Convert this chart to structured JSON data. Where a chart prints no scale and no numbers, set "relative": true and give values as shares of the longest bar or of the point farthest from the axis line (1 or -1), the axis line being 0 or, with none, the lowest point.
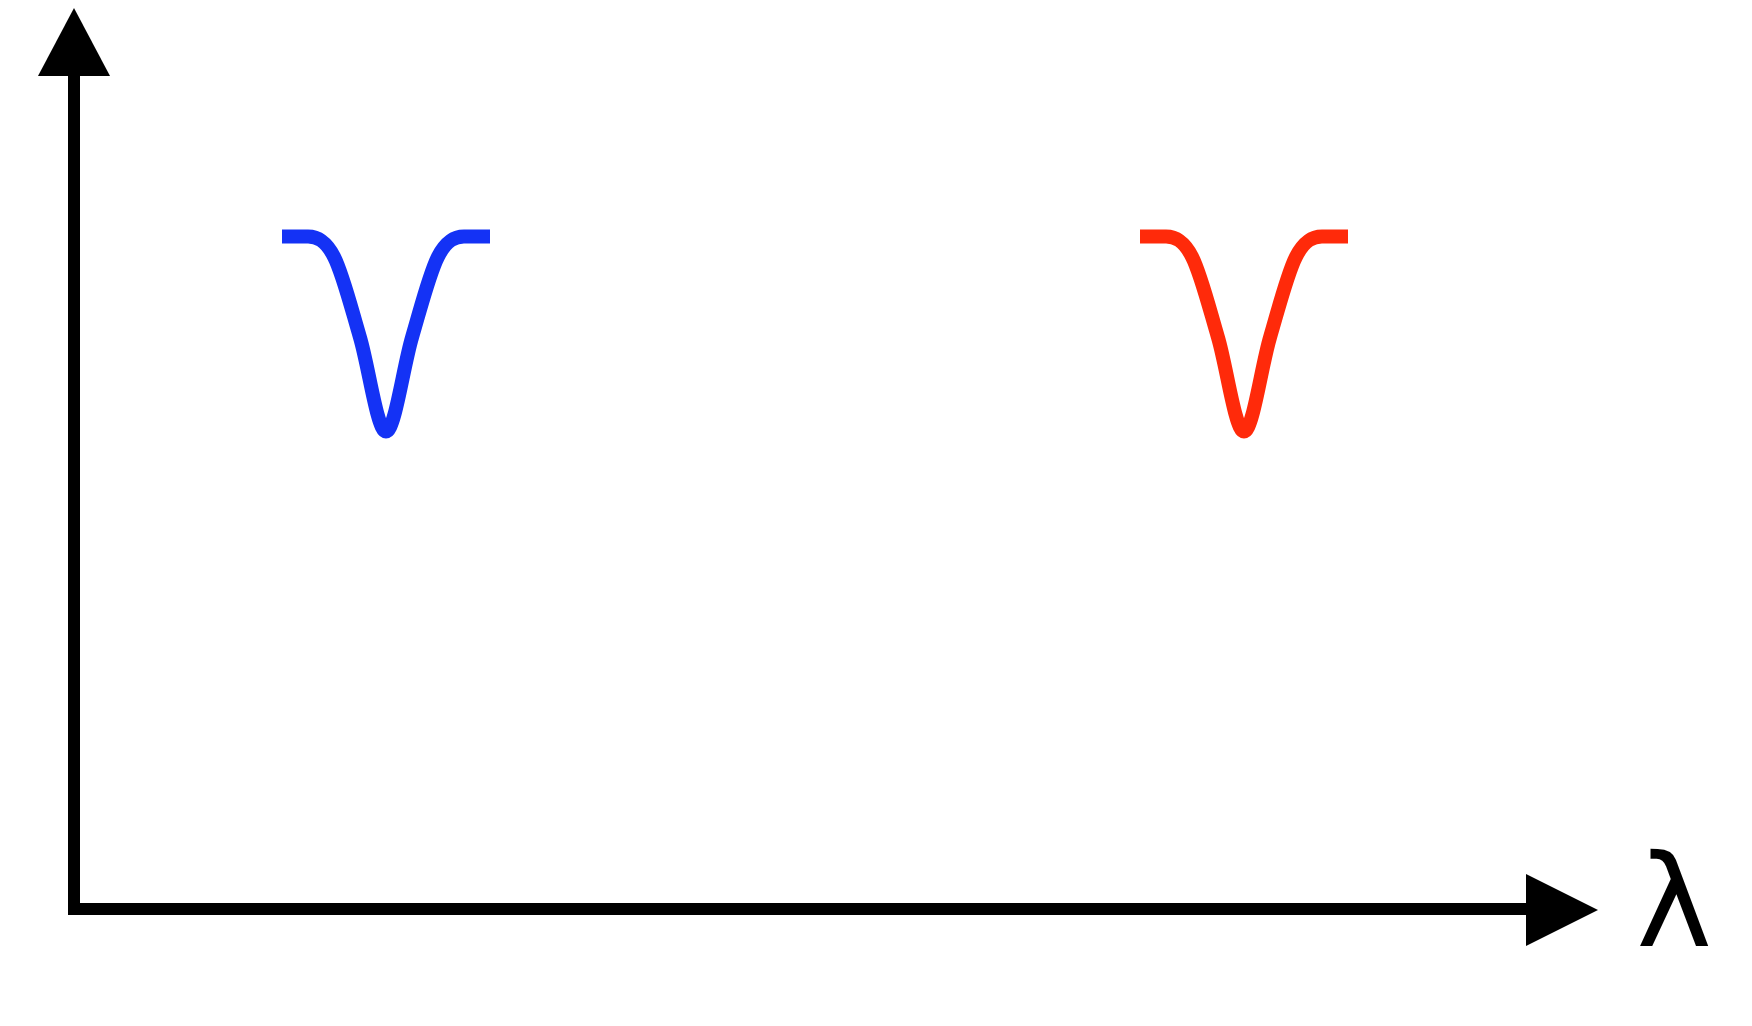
{
  "chart_data": {
    "type": "line",
    "relative": true,
    "xlabel": "λ",
    "legend": false,
    "grid": false,
    "marker": "none",
    "line_style": "solid",
    "categories": [
      null,
      null,
      null,
      null,
      null,
      null,
      null,
      null,
      null,
      null,
      null,
      null,
      null,
      null,
      null,
      null,
      null,
      null,
      null,
      null,
      null,
      null,
      null,
      null,
      null,
      null,
      null,
      null,
      null,
      null,
      null,
      null,
      null,
      null,
      null,
      null,
      null,
      null,
      null,
      null,
      null,
      null,
      null,
      null,
      null,
      null,
      null,
      null,
      null,
      null,
      null,
      null,
      null,
      null,
      null,
      null,
      null
    ],
    "series": [
      {
        "color": "#1432f5",
        "values": [
          null,
          null,
          null,
          null,
          null,
          null,
          null,
          null,
          1,
          1,
          0.97,
          0.85,
          0.71,
          0.85,
          0.97,
          1,
          1,
          null,
          null,
          null,
          null,
          null,
          null,
          null,
          null,
          null,
          null,
          null,
          null,
          null,
          null,
          null,
          null,
          null,
          null,
          null,
          null,
          null,
          null,
          null,
          null,
          null,
          null,
          null,
          null,
          null,
          null,
          null,
          null,
          null,
          null,
          null,
          null,
          null,
          null,
          null,
          null
        ]
      },
      {
        "color": "#ff2a0a",
        "values": [
          null,
          null,
          null,
          null,
          null,
          null,
          null,
          null,
          null,
          null,
          null,
          null,
          null,
          null,
          null,
          null,
          null,
          null,
          null,
          null,
          null,
          null,
          null,
          null,
          null,
          null,
          null,
          null,
          null,
          null,
          null,
          null,
          null,
          null,
          null,
          null,
          null,
          null,
          null,
          null,
          null,
          1,
          1,
          0.97,
          0.85,
          0.71,
          0.85,
          0.97,
          1,
          1,
          null,
          null,
          null,
          null,
          null,
          null,
          null
        ]
      }
    ]
  }
}
